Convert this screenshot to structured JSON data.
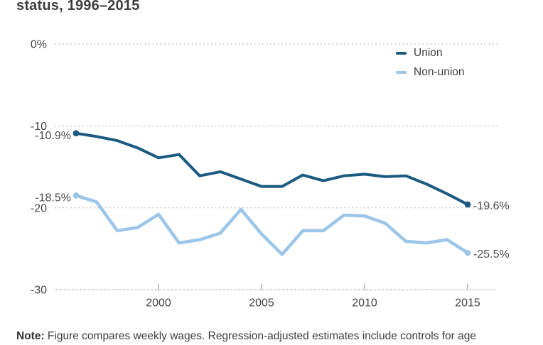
{
  "title_fragment": "status, 1996–2015",
  "legend": {
    "items": [
      {
        "label": "Union"
      },
      {
        "label": "Non-union"
      }
    ]
  },
  "note": {
    "label": "Note:",
    "text": " Figure compares weekly wages. Regression-adjusted estimates include controls for age"
  },
  "colors": {
    "union_line": "#1b5a80",
    "non_union_line": "#9cc6e8",
    "gridline": "#cccccc",
    "axis_text": "#444444",
    "data_label_text": "#4c4c4c",
    "title_text": "#3d3d3d"
  },
  "chart_data": {
    "type": "line",
    "title": "status, 1996–2015",
    "xlabel": "",
    "ylabel": "",
    "xlim": [
      1996,
      2015
    ],
    "ylim": [
      -30,
      0
    ],
    "grid": "dotted-horizontal",
    "legend_position": "top-right",
    "x": [
      1996,
      1997,
      1998,
      1999,
      2000,
      2001,
      2002,
      2003,
      2004,
      2005,
      2006,
      2007,
      2008,
      2009,
      2010,
      2011,
      2012,
      2013,
      2014,
      2015
    ],
    "series": [
      {
        "name": "Union",
        "color": "#1b5a80",
        "values": [
          -10.9,
          -11.3,
          -11.8,
          -12.7,
          -13.9,
          -13.5,
          -16.1,
          -15.6,
          -16.5,
          -17.4,
          -17.4,
          -16.0,
          -16.7,
          -16.1,
          -15.9,
          -16.2,
          -16.1,
          -17.1,
          -18.3,
          -19.6
        ],
        "first_point_label": "-10.9%",
        "last_point_label": "-19.6%"
      },
      {
        "name": "Non-union",
        "color": "#9cc6e8",
        "values": [
          -18.5,
          -19.3,
          -22.8,
          -22.4,
          -20.8,
          -24.3,
          -23.9,
          -23.1,
          -20.2,
          -23.2,
          -25.7,
          -22.8,
          -22.8,
          -20.9,
          -21.0,
          -21.9,
          -24.1,
          -24.3,
          -23.9,
          -25.5
        ],
        "first_point_label": "-18.5%",
        "last_point_label": "-25.5%"
      }
    ],
    "yticks": [
      {
        "value": 0,
        "label": "0%"
      },
      {
        "value": -10,
        "label": "-10"
      },
      {
        "value": -20,
        "label": "-20"
      },
      {
        "value": -30,
        "label": "-30"
      }
    ],
    "xticks": [
      {
        "value": 2000,
        "label": "2000"
      },
      {
        "value": 2005,
        "label": "2005"
      },
      {
        "value": 2010,
        "label": "2010"
      },
      {
        "value": 2015,
        "label": "2015"
      }
    ]
  }
}
